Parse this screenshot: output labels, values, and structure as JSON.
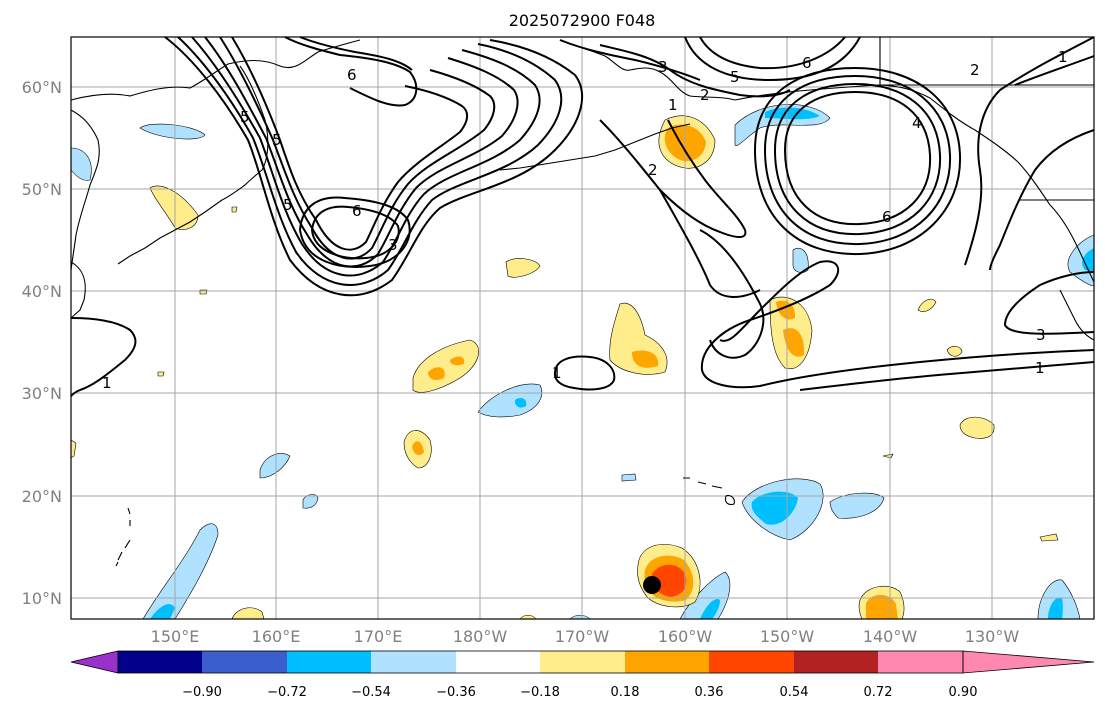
{
  "title": "2025072900 F048",
  "map": {
    "lat_labels": [
      "60°N",
      "50°N",
      "40°N",
      "30°N",
      "20°N",
      "10°N"
    ],
    "lon_labels": [
      "150°E",
      "160°E",
      "170°E",
      "180°W",
      "170°W",
      "160°W",
      "150°W",
      "140°W",
      "130°W"
    ],
    "contour_labels": [
      "6",
      "6",
      "6",
      "6",
      "5",
      "5",
      "5",
      "5",
      "3",
      "3",
      "2",
      "2",
      "2",
      "1",
      "1",
      "1",
      "1",
      "1",
      "4",
      "3"
    ],
    "marker": "storm-center-dot"
  },
  "colorbar": {
    "tick_labels": [
      "−0.90",
      "−0.72",
      "−0.54",
      "−0.36",
      "−0.18",
      "0.18",
      "0.36",
      "0.54",
      "0.72",
      "0.90"
    ],
    "colors": [
      "#9932cc",
      "#00008b",
      "#3a5fcd",
      "#00bfff",
      "#b0e2ff",
      "#ffffff",
      "#ffec8b",
      "#ffa500",
      "#ff4500",
      "#b22222",
      "#ff88b0"
    ]
  }
}
